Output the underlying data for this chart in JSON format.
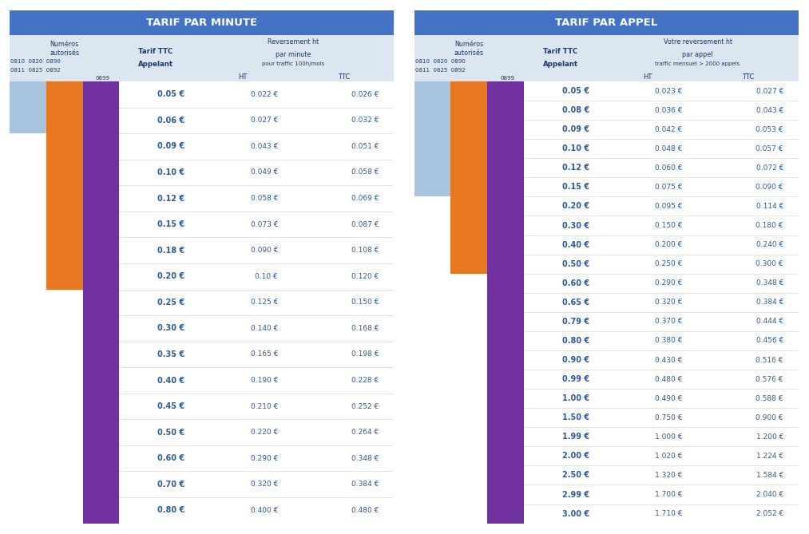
{
  "left_table": {
    "title": "TARIF PAR MINUTE",
    "header_bg": "#4472C4",
    "subheader_bg": "#DCE6F1",
    "rev_line1": "Reversement ht",
    "rev_line2": "par minute",
    "rev_line3": "pour traffic 100h/mois",
    "rows": [
      [
        "0.05 €",
        "0.022 €",
        "0.026 €"
      ],
      [
        "0.06 €",
        "0.027 €",
        "0.032 €"
      ],
      [
        "0.09 €",
        "0.043 €",
        "0.051 €"
      ],
      [
        "0.10 €",
        "0.049 €",
        "0.058 €"
      ],
      [
        "0.12 €",
        "0.058 €",
        "0.069 €"
      ],
      [
        "0.15 €",
        "0.073 €",
        "0.087 €"
      ],
      [
        "0.18 €",
        "0.090 €",
        "0.108 €"
      ],
      [
        "0.20 €",
        "0.10 €",
        "0.120 €"
      ],
      [
        "0.25 €",
        "0.125 €",
        "0.150 €"
      ],
      [
        "0.30 €",
        "0.140 €",
        "0.168 €"
      ],
      [
        "0.35 €",
        "0.165 €",
        "0.198 €"
      ],
      [
        "0.40 €",
        "0.190 €",
        "0.228 €"
      ],
      [
        "0.45 €",
        "0.210 €",
        "0.252 €"
      ],
      [
        "0.50 €",
        "0.220 €",
        "0.264 €"
      ],
      [
        "0.60 €",
        "0.290 €",
        "0.348 €"
      ],
      [
        "0.70 €",
        "0.320 €",
        "0.384 €"
      ],
      [
        "0.80 €",
        "0.400 €",
        "0.480 €"
      ]
    ],
    "bar_blue_rows": 2,
    "bar_orange_rows": 8,
    "bar_purple_rows": 17,
    "bar_blue_color": "#A8C4E0",
    "bar_orange_color": "#E87722",
    "bar_purple_color": "#7030A0"
  },
  "right_table": {
    "title": "TARIF PAR APPEL",
    "header_bg": "#4472C4",
    "subheader_bg": "#DCE6F1",
    "rev_line1": "Votre reversement ht",
    "rev_line2": "par appel",
    "rev_line3": "traffic mensuel > 2000 appels",
    "rows": [
      [
        "0.05 €",
        "0.023 €",
        "0.027 €"
      ],
      [
        "0.08 €",
        "0.036 €",
        "0.043 €"
      ],
      [
        "0.09 €",
        "0.042 €",
        "0.053 €"
      ],
      [
        "0.10 €",
        "0.048 €",
        "0.057 €"
      ],
      [
        "0.12 €",
        "0.060 €",
        "0.072 €"
      ],
      [
        "0.15 €",
        "0.075 €",
        "0.090 €"
      ],
      [
        "0.20 €",
        "0.095 €",
        "0.114 €"
      ],
      [
        "0.30 €",
        "0.150 €",
        "0.180 €"
      ],
      [
        "0.40 €",
        "0.200 €",
        "0.240 €"
      ],
      [
        "0.50 €",
        "0.250 €",
        "0.300 €"
      ],
      [
        "0.60 €",
        "0.290 €",
        "0.348 €"
      ],
      [
        "0.65 €",
        "0.320 €",
        "0.384 €"
      ],
      [
        "0.79 €",
        "0.370 €",
        "0.444 €"
      ],
      [
        "0.80 €",
        "0.380 €",
        "0.456 €"
      ],
      [
        "0.90 €",
        "0.430 €",
        "0.516 €"
      ],
      [
        "0.99 €",
        "0.480 €",
        "0.576 €"
      ],
      [
        "1.00 €",
        "0.490 €",
        "0.588 €"
      ],
      [
        "1.50 €",
        "0.750 €",
        "0.900 €"
      ],
      [
        "1.99 €",
        "1.000 €",
        "1.200 €"
      ],
      [
        "2.00 €",
        "1.020 €",
        "1.224 €"
      ],
      [
        "2.50 €",
        "1.320 €",
        "1.584 €"
      ],
      [
        "2.99 €",
        "1.700 €",
        "2.040 €"
      ],
      [
        "3.00 €",
        "1.710 €",
        "2.052 €"
      ]
    ],
    "bar_blue_rows": 6,
    "bar_orange_rows": 10,
    "bar_purple_rows": 23,
    "bar_blue_color": "#A8C4E0",
    "bar_orange_color": "#E87722",
    "bar_purple_color": "#7030A0"
  },
  "text_color_dark": "#1F3864",
  "text_color_body": "#2E5B9A",
  "background": "#FFFFFF"
}
